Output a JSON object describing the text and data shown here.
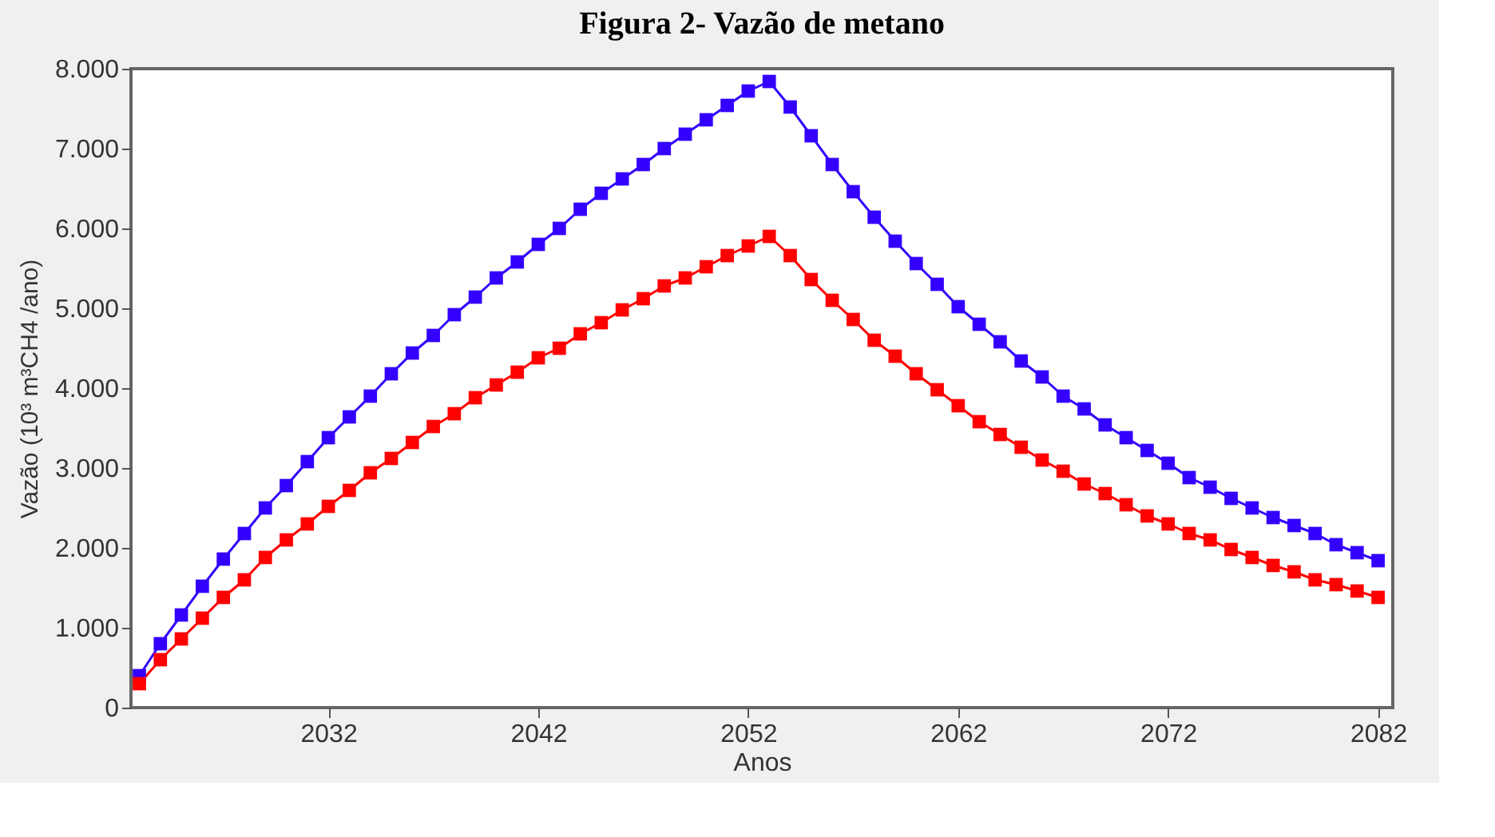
{
  "chart_data": {
    "type": "line",
    "title": "Figura 2- Vazão de metano",
    "xlabel": "Anos",
    "ylabel": "Vazão (10³ m³CH4 /ano)",
    "x": [
      2023,
      2024,
      2025,
      2026,
      2027,
      2028,
      2029,
      2030,
      2031,
      2032,
      2033,
      2034,
      2035,
      2036,
      2037,
      2038,
      2039,
      2040,
      2041,
      2042,
      2043,
      2044,
      2045,
      2046,
      2047,
      2048,
      2049,
      2050,
      2051,
      2052,
      2053,
      2054,
      2055,
      2056,
      2057,
      2058,
      2059,
      2060,
      2061,
      2062,
      2063,
      2064,
      2065,
      2066,
      2067,
      2068,
      2069,
      2070,
      2071,
      2072,
      2073,
      2074,
      2075,
      2076,
      2077,
      2078,
      2079,
      2080,
      2081,
      2082
    ],
    "series": [
      {
        "color": "#3300ff",
        "values": [
          400,
          800,
          1160,
          1520,
          1860,
          2180,
          2500,
          2780,
          3080,
          3380,
          3640,
          3900,
          4180,
          4440,
          4660,
          4920,
          5140,
          5380,
          5580,
          5800,
          6000,
          6240,
          6440,
          6620,
          6800,
          7000,
          7180,
          7360,
          7540,
          7720,
          7840,
          7520,
          7160,
          6800,
          6460,
          6140,
          5840,
          5560,
          5300,
          5020,
          4800,
          4580,
          4340,
          4140,
          3900,
          3740,
          3540,
          3380,
          3220,
          3060,
          2880,
          2760,
          2620,
          2500,
          2380,
          2280,
          2180,
          2040,
          1940,
          1840
        ]
      },
      {
        "color": "#ff0000",
        "values": [
          300,
          600,
          860,
          1120,
          1380,
          1600,
          1880,
          2100,
          2300,
          2520,
          2720,
          2940,
          3120,
          3320,
          3520,
          3680,
          3880,
          4040,
          4200,
          4380,
          4500,
          4680,
          4820,
          4980,
          5120,
          5280,
          5380,
          5520,
          5660,
          5780,
          5900,
          5660,
          5360,
          5100,
          4860,
          4600,
          4400,
          4180,
          3980,
          3780,
          3580,
          3420,
          3260,
          3100,
          2960,
          2800,
          2680,
          2540,
          2400,
          2300,
          2180,
          2100,
          1980,
          1880,
          1780,
          1700,
          1600,
          1540,
          1460,
          1380
        ]
      }
    ],
    "xlim": [
      2022.6,
      2082.7
    ],
    "xticks": [
      2032,
      2042,
      2052,
      2062,
      2072,
      2082
    ],
    "ylim": [
      0,
      8000
    ],
    "yticks": [
      0,
      {
        "value": 1000,
        "label": "1.000"
      },
      {
        "value": 2000,
        "label": "2.000"
      },
      {
        "value": 3000,
        "label": "3.000"
      },
      {
        "value": 4000,
        "label": "4.000"
      },
      {
        "value": 5000,
        "label": "5.000"
      },
      {
        "value": 6000,
        "label": "6.000"
      },
      {
        "value": 7000,
        "label": "7.000"
      },
      {
        "value": 8000,
        "label": "8.000"
      }
    ],
    "grid": false,
    "legend": false,
    "marker": "square",
    "line_style": "solid"
  }
}
